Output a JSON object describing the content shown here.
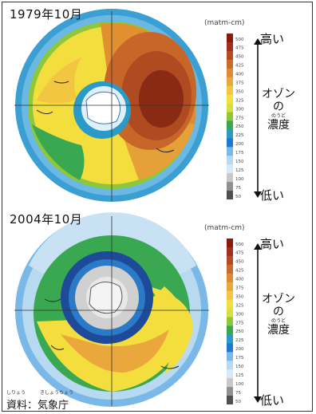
{
  "panels": [
    {
      "title": "1979年10月",
      "unit": "(matm-cm)",
      "scale_ticks": [
        "500",
        "475",
        "450",
        "425",
        "400",
        "375",
        "350",
        "325",
        "300",
        "275",
        "250",
        "225",
        "200",
        "175",
        "150",
        "125",
        "100",
        "75",
        "50"
      ],
      "label_high": "高い",
      "label_low": "低い",
      "label_ozone": "オゾン",
      "label_no": "の",
      "label_furigana": "のうど",
      "label_concentration": "濃度"
    },
    {
      "title": "2004年10月",
      "unit": "(matm-cm)",
      "scale_ticks": [
        "500",
        "475",
        "450",
        "425",
        "400",
        "375",
        "350",
        "325",
        "300",
        "275",
        "250",
        "225",
        "200",
        "175",
        "150",
        "125",
        "100",
        "75",
        "50"
      ],
      "label_high": "高い",
      "label_low": "低い",
      "label_ozone": "オゾン",
      "label_no": "の",
      "label_furigana": "のうど",
      "label_concentration": "濃度"
    }
  ],
  "source": {
    "furigana_1": "しりょう",
    "furigana_2": "きしょうちょう",
    "text": "資料：気象庁"
  },
  "colors": {
    "scale": [
      "#8a1a10",
      "#a0301a",
      "#b84a22",
      "#cc6a2a",
      "#de8a34",
      "#eaa83c",
      "#f2c640",
      "#f4de3e",
      "#d8e040",
      "#8cc83a",
      "#3aa850",
      "#2a9ac8",
      "#1e7ad0",
      "#7ab8e8",
      "#b8daf0",
      "#d8e8f4",
      "#c8c8c8",
      "#909090",
      "#505050"
    ]
  }
}
